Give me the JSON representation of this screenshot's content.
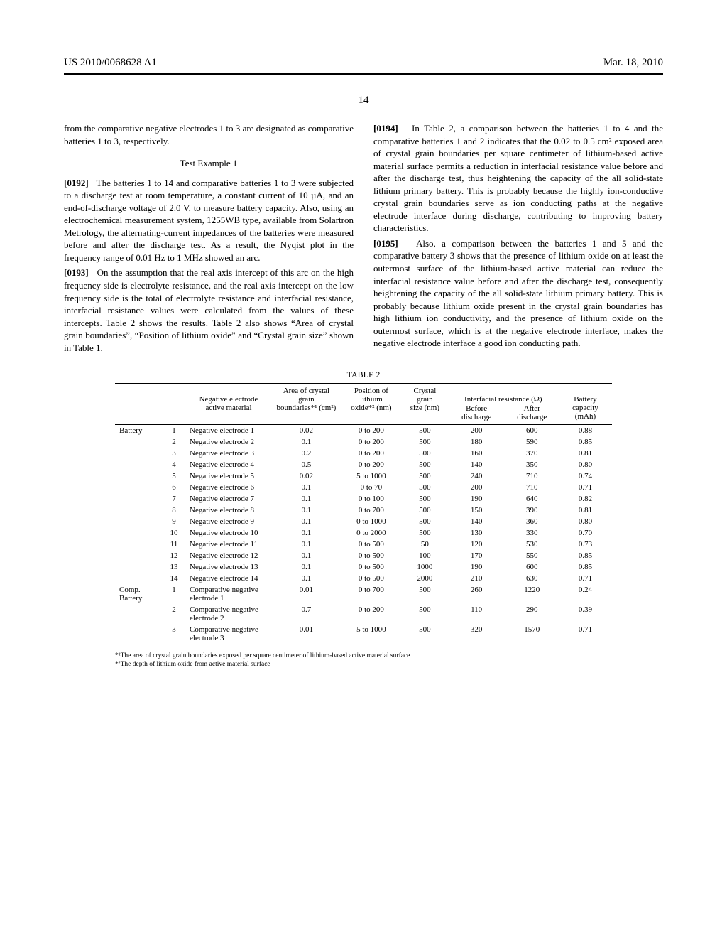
{
  "header": {
    "left": "US 2010/0068628 A1",
    "right": "Mar. 18, 2010",
    "page_number": "14"
  },
  "left_column": {
    "p_intro": "from the comparative negative electrodes 1 to 3 are designated as comparative batteries 1 to 3, respectively.",
    "test_title": "Test Example 1",
    "p0192_num": "[0192]",
    "p0192": "The batteries 1 to 14 and comparative batteries 1 to 3 were subjected to a discharge test at room temperature, a constant current of 10 µA, and an end-of-discharge voltage of 2.0 V, to measure battery capacity. Also, using an electrochemical measurement system, 1255WB type, available from Solartron Metrology, the alternating-current impedances of the batteries were measured before and after the discharge test. As a result, the Nyqist plot in the frequency range of 0.01 Hz to 1 MHz showed an arc.",
    "p0193_num": "[0193]",
    "p0193": "On the assumption that the real axis intercept of this arc on the high frequency side is electrolyte resistance, and the real axis intercept on the low frequency side is the total of electrolyte resistance and interfacial resistance, interfacial resistance values were calculated from the values of these intercepts. Table 2 shows the results. Table 2 also shows “Area of crystal grain boundaries”, “Position of lithium oxide” and “Crystal grain size” shown in Table 1."
  },
  "right_column": {
    "p0194_num": "[0194]",
    "p0194": "In Table 2, a comparison between the batteries 1 to 4 and the comparative batteries 1 and 2 indicates that the 0.02 to 0.5 cm² exposed area of crystal grain boundaries per square centimeter of lithium-based active material surface permits a reduction in interfacial resistance value before and after the discharge test, thus heightening the capacity of the all solid-state lithium primary battery. This is probably because the highly ion-conductive crystal grain boundaries serve as ion conducting paths at the negative electrode interface during discharge, contributing to improving battery characteristics.",
    "p0195_num": "[0195]",
    "p0195": "Also, a comparison between the batteries 1 and 5 and the comparative battery 3 shows that the presence of lithium oxide on at least the outermost surface of the lithium-based active material can reduce the interfacial resistance value before and after the discharge test, consequently heightening the capacity of the all solid-state lithium primary battery. This is probably because lithium oxide present in the crystal grain boundaries has high lithium ion conductivity, and the presence of lithium oxide on the outermost surface, which is at the negative electrode interface, makes the negative electrode interface a good ion conducting path."
  },
  "table": {
    "title": "TABLE 2",
    "head1": {
      "negelec": "Negative electrode",
      "area": "Area of crystal grain",
      "pos": "Position of lithium",
      "grain": "Crystal grain",
      "ir": "Interfacial resistance (Ω)",
      "cap": "Battery"
    },
    "head2": {
      "active": "active material",
      "bound": "boundaries*¹ (cm²)",
      "oxide": "oxide*² (nm)",
      "size": "size (nm)",
      "before": "Before discharge",
      "after": "After discharge",
      "cap": "capacity (mAh)"
    },
    "group1": "Battery",
    "group2": "Comp. Battery",
    "rows": [
      {
        "g": "Battery",
        "n": "1",
        "am": "Negative electrode 1",
        "area": "0.02",
        "pos": "0 to 200",
        "size": "500",
        "bd": "200",
        "ad": "600",
        "cap": "0.88"
      },
      {
        "g": "",
        "n": "2",
        "am": "Negative electrode 2",
        "area": "0.1",
        "pos": "0 to 200",
        "size": "500",
        "bd": "180",
        "ad": "590",
        "cap": "0.85"
      },
      {
        "g": "",
        "n": "3",
        "am": "Negative electrode 3",
        "area": "0.2",
        "pos": "0 to 200",
        "size": "500",
        "bd": "160",
        "ad": "370",
        "cap": "0.81"
      },
      {
        "g": "",
        "n": "4",
        "am": "Negative electrode 4",
        "area": "0.5",
        "pos": "0 to 200",
        "size": "500",
        "bd": "140",
        "ad": "350",
        "cap": "0.80"
      },
      {
        "g": "",
        "n": "5",
        "am": "Negative electrode 5",
        "area": "0.02",
        "pos": "5 to 1000",
        "size": "500",
        "bd": "240",
        "ad": "710",
        "cap": "0.74"
      },
      {
        "g": "",
        "n": "6",
        "am": "Negative electrode 6",
        "area": "0.1",
        "pos": "0 to 70",
        "size": "500",
        "bd": "200",
        "ad": "710",
        "cap": "0.71"
      },
      {
        "g": "",
        "n": "7",
        "am": "Negative electrode 7",
        "area": "0.1",
        "pos": "0 to 100",
        "size": "500",
        "bd": "190",
        "ad": "640",
        "cap": "0.82"
      },
      {
        "g": "",
        "n": "8",
        "am": "Negative electrode 8",
        "area": "0.1",
        "pos": "0 to 700",
        "size": "500",
        "bd": "150",
        "ad": "390",
        "cap": "0.81"
      },
      {
        "g": "",
        "n": "9",
        "am": "Negative electrode 9",
        "area": "0.1",
        "pos": "0 to 1000",
        "size": "500",
        "bd": "140",
        "ad": "360",
        "cap": "0.80"
      },
      {
        "g": "",
        "n": "10",
        "am": "Negative electrode 10",
        "area": "0.1",
        "pos": "0 to 2000",
        "size": "500",
        "bd": "130",
        "ad": "330",
        "cap": "0.70"
      },
      {
        "g": "",
        "n": "11",
        "am": "Negative electrode 11",
        "area": "0.1",
        "pos": "0 to 500",
        "size": "50",
        "bd": "120",
        "ad": "530",
        "cap": "0.73"
      },
      {
        "g": "",
        "n": "12",
        "am": "Negative electrode 12",
        "area": "0.1",
        "pos": "0 to 500",
        "size": "100",
        "bd": "170",
        "ad": "550",
        "cap": "0.85"
      },
      {
        "g": "",
        "n": "13",
        "am": "Negative electrode 13",
        "area": "0.1",
        "pos": "0 to 500",
        "size": "1000",
        "bd": "190",
        "ad": "600",
        "cap": "0.85"
      },
      {
        "g": "",
        "n": "14",
        "am": "Negative electrode 14",
        "area": "0.1",
        "pos": "0 to 500",
        "size": "2000",
        "bd": "210",
        "ad": "630",
        "cap": "0.71"
      },
      {
        "g": "Comp. Battery",
        "n": "1",
        "am": "Comparative negative electrode 1",
        "area": "0.01",
        "pos": "0 to 700",
        "size": "500",
        "bd": "260",
        "ad": "1220",
        "cap": "0.24"
      },
      {
        "g": "",
        "n": "2",
        "am": "Comparative negative electrode 2",
        "area": "0.7",
        "pos": "0 to 200",
        "size": "500",
        "bd": "110",
        "ad": "290",
        "cap": "0.39"
      },
      {
        "g": "",
        "n": "3",
        "am": "Comparative negative electrode 3",
        "area": "0.01",
        "pos": "5 to 1000",
        "size": "500",
        "bd": "320",
        "ad": "1570",
        "cap": "0.71"
      }
    ],
    "footnote1": "*¹The area of crystal grain boundaries exposed per square centimeter of lithium-based active material surface",
    "footnote2": "*²The depth of lithium oxide from active material surface"
  }
}
